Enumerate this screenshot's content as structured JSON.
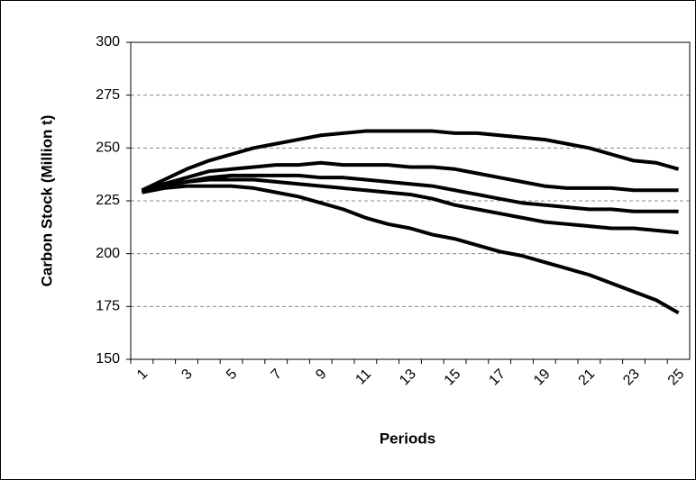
{
  "chart_data": {
    "type": "line",
    "xlabel": "Periods",
    "ylabel": "Carbon Stock (Million t)",
    "categories": [
      "1",
      null,
      "3",
      null,
      "5",
      null,
      "7",
      null,
      "9",
      null,
      "11",
      null,
      "13",
      null,
      "15",
      null,
      "17",
      null,
      "19",
      null,
      "21",
      null,
      "23",
      null,
      "25"
    ],
    "series": [
      {
        "color": "#000000",
        "values": [
          230,
          235,
          240,
          244,
          247,
          250,
          252,
          254,
          256,
          257,
          258,
          258,
          258,
          258,
          257,
          257,
          256,
          255,
          254,
          252,
          250,
          247,
          244,
          243,
          240
        ]
      },
      {
        "color": "#000000",
        "values": [
          230,
          233,
          236,
          239,
          240,
          241,
          242,
          242,
          243,
          242,
          242,
          242,
          241,
          241,
          240,
          238,
          236,
          234,
          232,
          231,
          231,
          231,
          230,
          230,
          230
        ]
      },
      {
        "color": "#000000",
        "values": [
          230,
          232,
          234,
          236,
          237,
          237,
          237,
          237,
          236,
          236,
          235,
          234,
          233,
          232,
          230,
          228,
          226,
          224,
          223,
          222,
          221,
          221,
          220,
          220,
          220
        ]
      },
      {
        "color": "#000000",
        "values": [
          229,
          232,
          234,
          235,
          235,
          235,
          234,
          233,
          232,
          231,
          230,
          229,
          228,
          226,
          223,
          221,
          219,
          217,
          215,
          214,
          213,
          212,
          212,
          211,
          210
        ]
      },
      {
        "color": "#000000",
        "values": [
          229,
          231,
          232,
          232,
          232,
          231,
          229,
          227,
          224,
          221,
          217,
          214,
          212,
          209,
          207,
          204,
          201,
          199,
          196,
          193,
          190,
          186,
          182,
          178,
          172
        ]
      }
    ],
    "ylim": [
      150,
      300
    ],
    "yticks": [
      150,
      175,
      200,
      225,
      250,
      275,
      300
    ],
    "grid": true
  }
}
